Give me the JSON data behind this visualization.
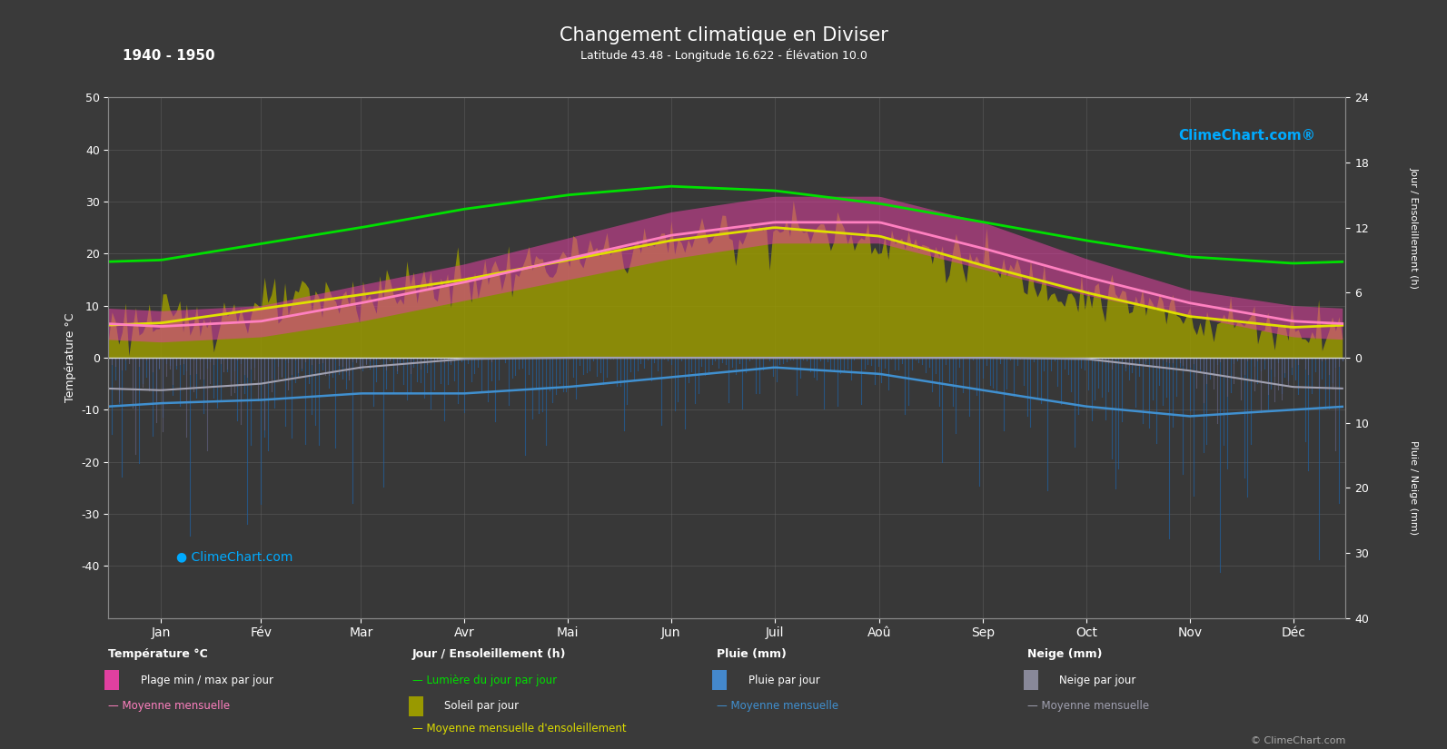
{
  "title": "Changement climatique en Diviser",
  "subtitle": "Latitude 43.48 - Longitude 16.622 - Élévation 10.0",
  "year_range": "1940 - 1950",
  "bg_color": "#3a3a3a",
  "plot_bg_color": "#383838",
  "months": [
    "Jan",
    "Fév",
    "Mar",
    "Avr",
    "Mai",
    "Jun",
    "Juil",
    "Aoû",
    "Sep",
    "Oct",
    "Nov",
    "Déc"
  ],
  "temp_min_monthly": [
    3,
    4,
    7,
    11,
    15,
    19,
    22,
    22,
    17,
    12,
    8,
    4
  ],
  "temp_max_monthly": [
    9,
    10,
    14,
    18,
    23,
    28,
    31,
    31,
    26,
    19,
    13,
    10
  ],
  "temp_mean_monthly": [
    6,
    7,
    10.5,
    14.5,
    19,
    23.5,
    26,
    26,
    21,
    15.5,
    10.5,
    7
  ],
  "daylight_hours": [
    9.0,
    10.5,
    12.0,
    13.7,
    15.0,
    15.8,
    15.4,
    14.2,
    12.5,
    10.8,
    9.3,
    8.7
  ],
  "sunshine_hours_mean": [
    3.2,
    4.5,
    5.8,
    7.2,
    9.0,
    10.8,
    12.0,
    11.2,
    8.5,
    6.0,
    3.8,
    2.8
  ],
  "rain_mm_mean": [
    7.0,
    6.5,
    5.5,
    5.5,
    4.5,
    3.0,
    1.5,
    2.5,
    5.0,
    7.5,
    9.0,
    8.0
  ],
  "rain_mm_monthly_mean": [
    7.0,
    6.5,
    5.5,
    5.5,
    4.5,
    3.0,
    1.5,
    2.5,
    5.0,
    7.5,
    9.0,
    8.0
  ],
  "snow_mm_mean": [
    5.0,
    4.0,
    1.5,
    0.2,
    0.0,
    0.0,
    0.0,
    0.0,
    0.0,
    0.2,
    2.0,
    4.5
  ],
  "snow_mm_monthly_mean": [
    5.0,
    4.0,
    1.5,
    0.2,
    0.0,
    0.0,
    0.0,
    0.0,
    0.0,
    0.2,
    2.0,
    4.5
  ],
  "temp_ylim": [
    -50,
    50
  ],
  "sun_max": 24,
  "precip_max": 40,
  "pink_fill_color": "#e040a0",
  "temp_mean_line_color": "#ff80c0",
  "daylight_line_color": "#00e000",
  "sunshine_fill_color": "#999900",
  "rain_bar_color": "#2060a0",
  "rain_mean_line_color": "#4090d0",
  "snow_bar_color": "#606080",
  "snow_mean_line_color": "#a0a0b0",
  "copyright": "© ClimeChart.com"
}
